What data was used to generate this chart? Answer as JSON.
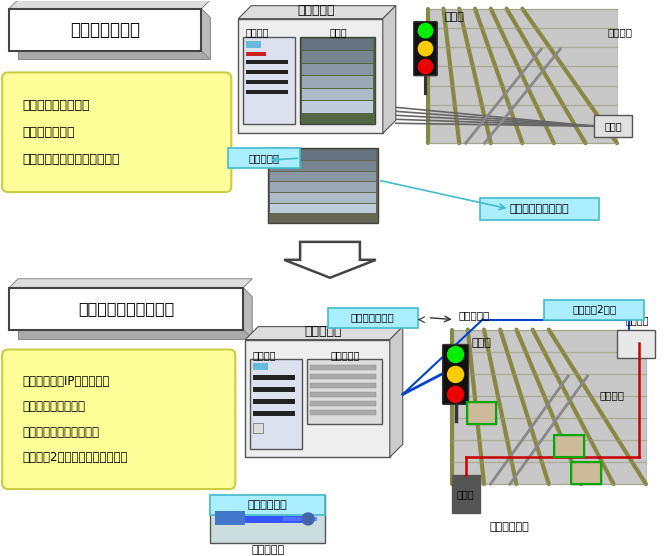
{
  "bg_color": "#ffffff",
  "top_title": "従来の信号制御",
  "top_bullet1": "膨大な銅線ケーブル",
  "top_bullet2": "複雑な配線作業",
  "top_bullet3": "信号機器ごとの配線確認試験",
  "bottom_title": "ネットワーク信号制御",
  "bottom_bullet1": "光ケーブル・IP技術の採用",
  "bottom_bullet2": "ケーブル敷設量削減",
  "bottom_bullet3": "配線作業の削減・簡素化",
  "bottom_bullet4": "制御回線2重化による信頼度向上",
  "label_shinkigo": "信号機器室",
  "label_seigyo": "制御装置",
  "label_haisen": "配線架",
  "label_fukuzatsu": "複雑な配線",
  "label_bokudai": "膨大な銅線ケーブル",
  "label_shingo": "信号機",
  "label_tentetsu": "転てつ機",
  "label_chukeibako": "中継箱",
  "label_shinkigo2": "信号機器室",
  "label_seigyo2": "制御装置",
  "label_hikari_denso": "光伝送装置",
  "label_haisen_kanso": "配線の簡素化",
  "label_hikari_connecto": "光コネクタ",
  "label_keble_sakugen": "ケーブル量削減",
  "label_hikari_cable": "光ケーブル",
  "label_seigyo_judo": "制御回線2重化",
  "label_kosei_tanmatsuhako": "光成端箱",
  "label_shingo2": "信号機",
  "label_tentetsu2": "転てつ機",
  "label_dengen_bako": "電源箱",
  "label_dengen_cable": "電源ケーブル",
  "yellow_fill": "#ffff99",
  "yellow_stroke": "#cccc44",
  "cyan_fill": "#aaeeff",
  "cyan_stroke": "#44bbcc",
  "box_stroke": "#333333",
  "arrow_color": "#555555",
  "track_bg": "#cccccc",
  "track_stripe": "#999966",
  "building_front": "#eeeeee",
  "building_top": "#dddddd",
  "building_right": "#cccccc"
}
